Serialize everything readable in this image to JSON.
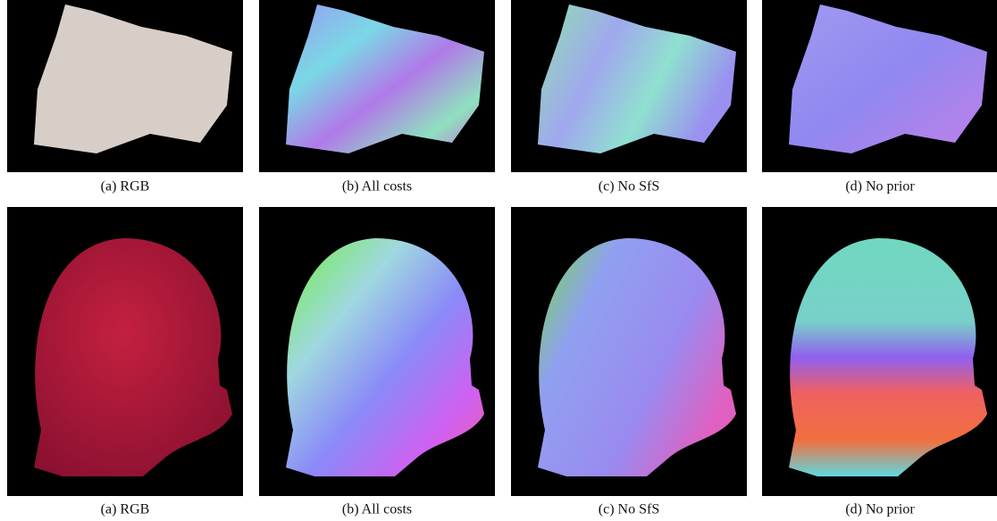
{
  "figure": {
    "rows": [
      {
        "captions": [
          "(a) RGB",
          "(b) All costs",
          "(c) No SfS",
          "(d) No prior"
        ]
      },
      {
        "captions": [
          "(a) RGB",
          "(b) All costs",
          "(c) No SfS",
          "(d) No prior"
        ]
      }
    ]
  }
}
